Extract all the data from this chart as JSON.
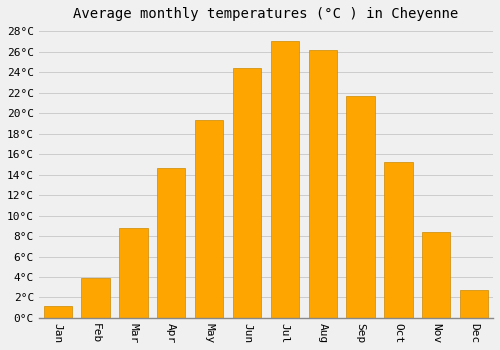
{
  "title": "Average monthly temperatures (°C ) in Cheyenne",
  "months": [
    "Jan",
    "Feb",
    "Mar",
    "Apr",
    "May",
    "Jun",
    "Jul",
    "Aug",
    "Sep",
    "Oct",
    "Nov",
    "Dec"
  ],
  "values": [
    1.2,
    3.9,
    8.8,
    14.7,
    19.3,
    24.4,
    27.1,
    26.2,
    21.7,
    15.2,
    8.4,
    2.7
  ],
  "bar_color": "#FFA500",
  "bar_edge_color": "#CC8800",
  "background_color": "#F0F0F0",
  "plot_bg_color": "#F0F0F0",
  "grid_color": "#CCCCCC",
  "ylim": [
    0,
    28
  ],
  "ytick_step": 2,
  "ylabel_suffix": "°C",
  "title_fontsize": 10,
  "tick_fontsize": 8,
  "font_family": "monospace"
}
